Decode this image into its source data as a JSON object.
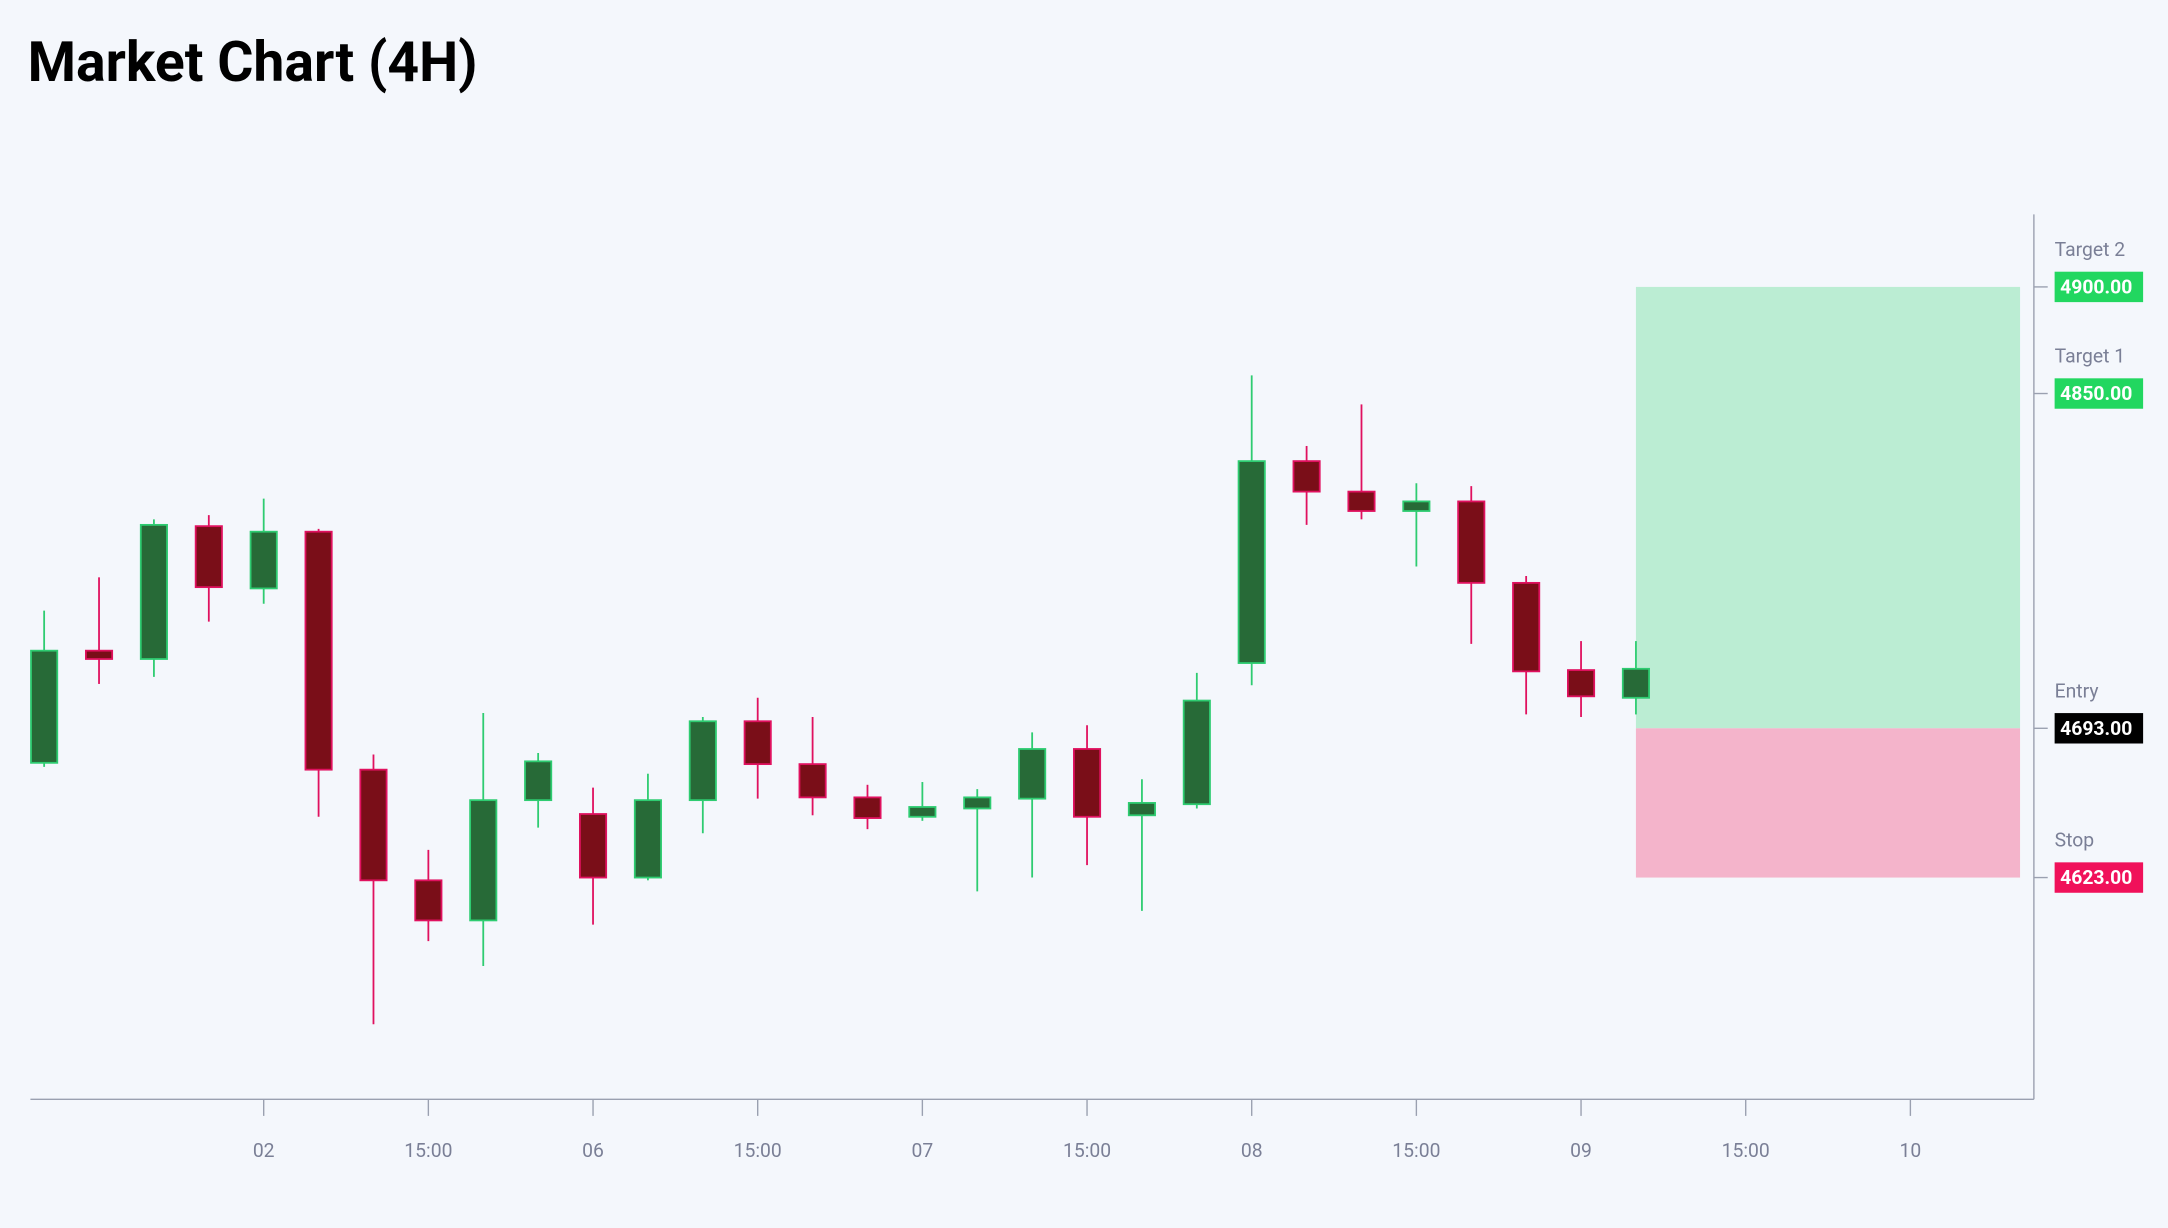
{
  "chart_data": {
    "type": "candlestick",
    "title": "Market Chart (4H)",
    "open": [
      4676.8,
      4729.4,
      4725.5,
      4787.8,
      4758.6,
      4785.2,
      4673.6,
      4621.7,
      4602.9,
      4659.3,
      4652.8,
      4623.0,
      4659.3,
      4696.3,
      4676.2,
      4660.6,
      4651.5,
      4655.4,
      4660.0,
      4683.3,
      4652.2,
      4657.4,
      4723.6,
      4818.3,
      4804.0,
      4794.9,
      4799.4,
      4761.2,
      4720.3,
      4707.3
    ],
    "high": [
      4748.2,
      4763.8,
      4791.0,
      4793.0,
      4800.7,
      4786.5,
      4680.7,
      4636.0,
      4700.2,
      4681.4,
      4665.2,
      4671.7,
      4698.3,
      4707.3,
      4698.3,
      4666.5,
      4667.8,
      4664.5,
      4691.1,
      4694.4,
      4669.1,
      4719.0,
      4858.5,
      4825.4,
      4844.9,
      4807.9,
      4806.6,
      4764.4,
      4733.9,
      4733.9
    ],
    "low": [
      4674.9,
      4713.8,
      4717.1,
      4743.0,
      4751.4,
      4651.5,
      4554.2,
      4593.2,
      4581.5,
      4646.4,
      4600.9,
      4621.7,
      4643.8,
      4660.0,
      4652.2,
      4645.7,
      4649.6,
      4616.5,
      4623.0,
      4628.8,
      4607.4,
      4655.4,
      4713.2,
      4788.4,
      4791.0,
      4768.9,
      4732.6,
      4699.5,
      4698.3,
      4699.5
    ],
    "close": [
      4729.4,
      4725.5,
      4788.4,
      4759.2,
      4785.2,
      4673.6,
      4621.7,
      4602.9,
      4659.3,
      4677.5,
      4623.0,
      4659.3,
      4696.3,
      4676.2,
      4660.6,
      4650.9,
      4656.1,
      4660.6,
      4683.3,
      4651.5,
      4658.0,
      4706.0,
      4818.3,
      4804.0,
      4794.9,
      4799.4,
      4761.2,
      4719.7,
      4708.0,
      4720.9
    ],
    "up_color": "#276a37",
    "up_border": "#2ecc71",
    "down_color": "#7a0e18",
    "down_border": "#e0115f",
    "xlim": [
      -0.25,
      36.25
    ],
    "xticks": [
      {
        "value": 4,
        "label": "02"
      },
      {
        "value": 7,
        "label": "15:00"
      },
      {
        "value": 10,
        "label": "06"
      },
      {
        "value": 13,
        "label": "15:00"
      },
      {
        "value": 16,
        "label": "07"
      },
      {
        "value": 19,
        "label": "15:00"
      },
      {
        "value": 22,
        "label": "08"
      },
      {
        "value": 25,
        "label": "15:00"
      },
      {
        "value": 28,
        "label": "09"
      },
      {
        "value": 31,
        "label": "15:00"
      },
      {
        "value": 34,
        "label": "10"
      }
    ],
    "ylim": [
      4519,
      4934
    ],
    "levels": [
      {
        "name": "Target 2",
        "price": {
          "value": 4900,
          "label": "4900.00"
        },
        "color": "#22d760"
      },
      {
        "name": "Target 1",
        "price": {
          "value": 4850,
          "label": "4850.00"
        },
        "color": "#22d760"
      },
      {
        "name": "Entry",
        "price": {
          "value": 4693,
          "label": "4693.00"
        },
        "color": "#000000"
      },
      {
        "name": "Stop",
        "price": {
          "value": 4623,
          "label": "4623.00"
        },
        "color": "#f0115a"
      }
    ],
    "reward_color": "#bbedd3",
    "risk_color": "#f4b4cb"
  }
}
